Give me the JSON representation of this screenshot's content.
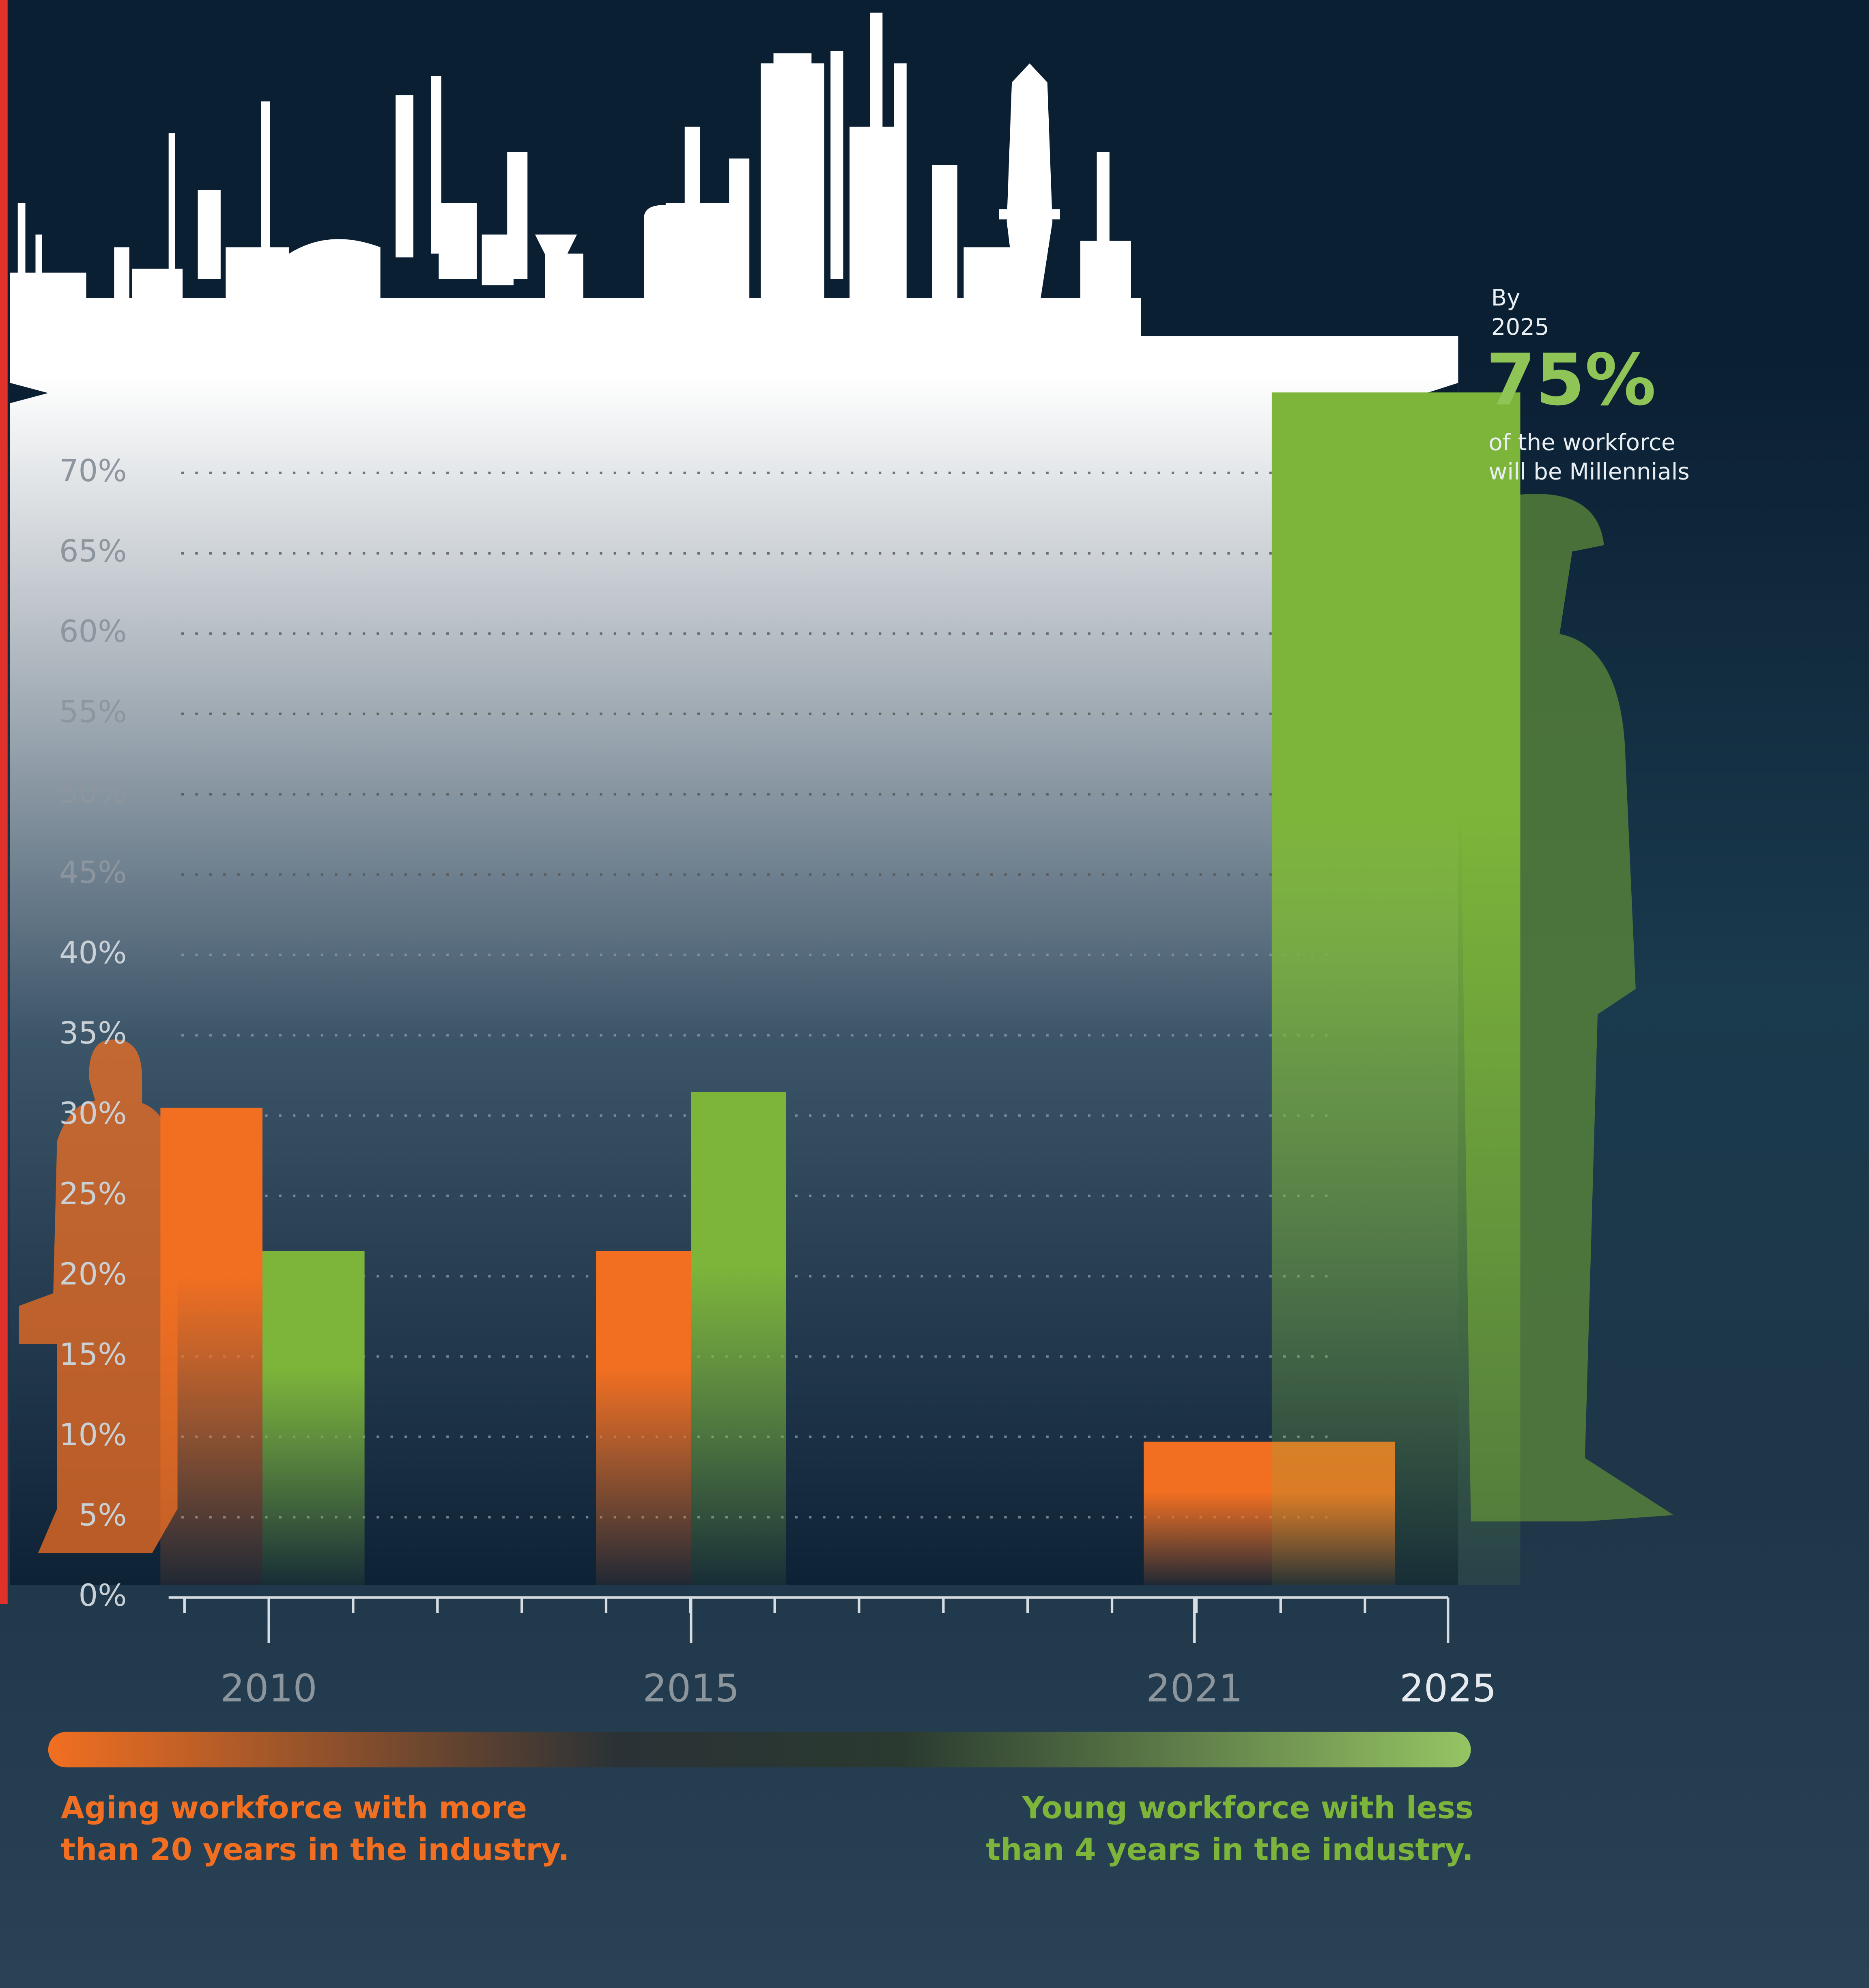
{
  "chart_data": {
    "type": "bar",
    "categories": [
      "2010",
      "2015",
      "2021",
      "2025"
    ],
    "series": [
      {
        "name": "Aging workforce with more than 20 years in the industry.",
        "color": "#f26f21",
        "values": [
          30,
          21,
          9,
          null
        ]
      },
      {
        "name": "Young workforce with less than 4 years in the industry.",
        "color": "#7db53a",
        "values": [
          21,
          31,
          null,
          75
        ],
        "value_labels": [
          null,
          null,
          null,
          "75%"
        ]
      }
    ],
    "ylim": [
      0,
      76
    ],
    "yticks": [
      {
        "value": 0,
        "label": "0%"
      },
      {
        "value": 5,
        "label": "5%"
      },
      {
        "value": 10,
        "label": "10%"
      },
      {
        "value": 15,
        "label": "15%"
      },
      {
        "value": 20,
        "label": "20%"
      },
      {
        "value": 25,
        "label": "25%"
      },
      {
        "value": 30,
        "label": "30%"
      },
      {
        "value": 35,
        "label": "35%"
      },
      {
        "value": 40,
        "label": "40%"
      },
      {
        "value": 45,
        "label": "45%"
      },
      {
        "value": 50,
        "label": "50%"
      },
      {
        "value": 55,
        "label": "55%"
      },
      {
        "value": 60,
        "label": "60%"
      },
      {
        "value": 65,
        "label": "65%"
      },
      {
        "value": 70,
        "label": "70%"
      }
    ],
    "grid": true,
    "annotation": {
      "lead": "By 2025",
      "text": "of the workforce will be Millennials"
    }
  }
}
